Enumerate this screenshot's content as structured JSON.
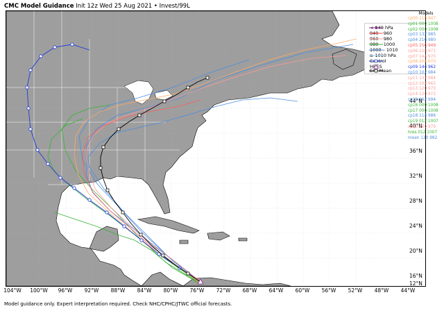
{
  "title": {
    "bold": "CMC Model Guidance",
    "rest": "Init 12z Wed 25 Aug 2021 • Invest/99L"
  },
  "footer": "Model guidance only. Expert interpretation required. Check NHC/CPHC/JTWC official forecasts.",
  "axes": {
    "lon_ticks": [
      "104°W",
      "100°W",
      "96°W",
      "92°W",
      "88°W",
      "84°W",
      "80°W",
      "76°W",
      "72°W",
      "68°W",
      "64°W",
      "60°W",
      "56°W",
      "52°W",
      "48°W",
      "44°W"
    ],
    "lat_ticks": [
      "44°N",
      "40°N",
      "36°N",
      "32°N",
      "28°N",
      "24°N",
      "20°N",
      "16°N",
      "12°N"
    ]
  },
  "legend": {
    "items": [
      {
        "label": "< 940 hPa",
        "color": "#8b2d8f"
      },
      {
        "label": "940 – 960",
        "color": "#ff4040"
      },
      {
        "label": "960 – 980",
        "color": "#ff9a9a"
      },
      {
        "label": "980 – 1000",
        "color": "#35b435"
      },
      {
        "label": "1000 – 1010",
        "color": "#4a8de0"
      },
      {
        "label": "≥ 1010 hPa",
        "color": "#9fc5f0"
      },
      {
        "label": "Control",
        "color": "#1f3bd8"
      },
      {
        "label": "HRES",
        "color": "#8b2d8f"
      },
      {
        "label": "Ens Mean",
        "color": "#000000"
      }
    ]
  },
  "models": {
    "heading": "Models",
    "entries": [
      {
        "text": "cp00 116 947",
        "color": "#ffaa66"
      },
      {
        "text": "cp01 000 1008",
        "color": "#35b435"
      },
      {
        "text": "cp02 000 1008",
        "color": "#35b435"
      },
      {
        "text": "cp03 132 985",
        "color": "#4a8de0"
      },
      {
        "text": "cp04 216 980",
        "color": "#4a8de0"
      },
      {
        "text": "cp05 156 949",
        "color": "#ff5a5a"
      },
      {
        "text": "cp06 228 971",
        "color": "#ff9a9a"
      },
      {
        "text": "cp07 144 970",
        "color": "#ff9a9a"
      },
      {
        "text": "cp08 204 970",
        "color": "#ffaa66"
      },
      {
        "text": "cp09 144 962",
        "color": "#1f3bd8"
      },
      {
        "text": "cp10 102 984",
        "color": "#4a8de0"
      },
      {
        "text": "cp11 132 984",
        "color": "#ff9a9a"
      },
      {
        "text": "cp12 102 965",
        "color": "#ff9a9a"
      },
      {
        "text": "cp13 120 970",
        "color": "#ff9a9a"
      },
      {
        "text": "cp14 120 972",
        "color": "#ff9a9a"
      },
      {
        "text": "cp15 162 994",
        "color": "#4a8de0"
      },
      {
        "text": "cp16 000 1008",
        "color": "#35b435"
      },
      {
        "text": "cp17 000 1008",
        "color": "#35b435"
      },
      {
        "text": "cp18 114 986",
        "color": "#4a8de0"
      },
      {
        "text": "cp19 012 1007",
        "color": "#35b435"
      },
      {
        "text": "cp20 120 979",
        "color": "#ff9a9a"
      },
      {
        "text": "hres 012 1007",
        "color": "#35b435"
      },
      {
        "text": "mean 120 982",
        "color": "#4a8de0"
      }
    ]
  },
  "colors": {
    "land": "#9e9e9e",
    "water": "#ffffff",
    "border": "#ffffff",
    "coast": "#000000"
  }
}
